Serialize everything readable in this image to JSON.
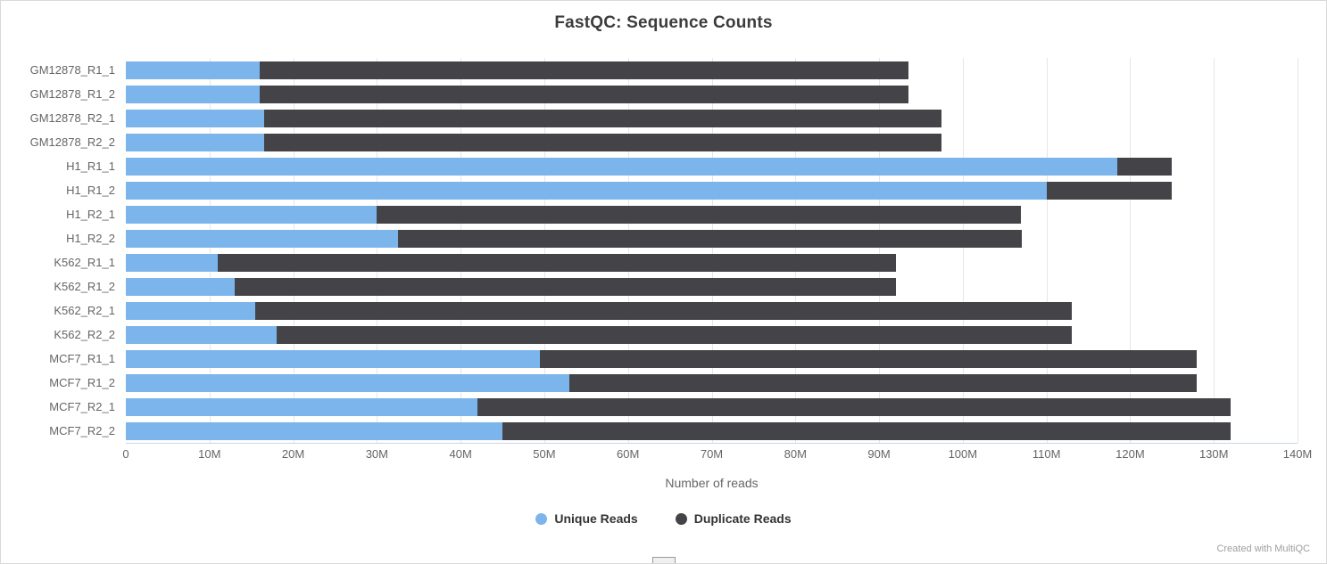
{
  "chart": {
    "title": "FastQC: Sequence Counts",
    "xlabel": "Number of reads",
    "credit": "Created with MultiQC",
    "legend": [
      {
        "label": "Unique Reads",
        "color": "#7cb5ec"
      },
      {
        "label": "Duplicate Reads",
        "color": "#434348"
      }
    ]
  },
  "chart_data": {
    "type": "bar",
    "orientation": "horizontal",
    "stacked": true,
    "title": "FastQC: Sequence Counts",
    "xlabel": "Number of reads",
    "values_unit": "millions of reads",
    "xlim_m": [
      0,
      140
    ],
    "x_ticks": [
      "0",
      "10M",
      "20M",
      "30M",
      "40M",
      "50M",
      "60M",
      "70M",
      "80M",
      "90M",
      "100M",
      "110M",
      "120M",
      "130M",
      "140M"
    ],
    "grid": true,
    "legend_position": "bottom",
    "categories": [
      "GM12878_R1_1",
      "GM12878_R1_2",
      "GM12878_R2_1",
      "GM12878_R2_2",
      "H1_R1_1",
      "H1_R1_2",
      "H1_R2_1",
      "H1_R2_2",
      "K562_R1_1",
      "K562_R1_2",
      "K562_R2_1",
      "K562_R2_2",
      "MCF7_R1_1",
      "MCF7_R1_2",
      "MCF7_R2_1",
      "MCF7_R2_2"
    ],
    "series": [
      {
        "name": "Unique Reads",
        "color": "#7cb5ec",
        "values": [
          16,
          16,
          16.5,
          16.5,
          118.5,
          110,
          30,
          32.5,
          11,
          13,
          15.5,
          18,
          49.5,
          53,
          42,
          45
        ]
      },
      {
        "name": "Duplicate Reads",
        "color": "#434348",
        "values": [
          77.5,
          77.5,
          81,
          81,
          6.5,
          15,
          77,
          74.5,
          81,
          79,
          97.5,
          95,
          78.5,
          75,
          90,
          87
        ]
      }
    ]
  }
}
